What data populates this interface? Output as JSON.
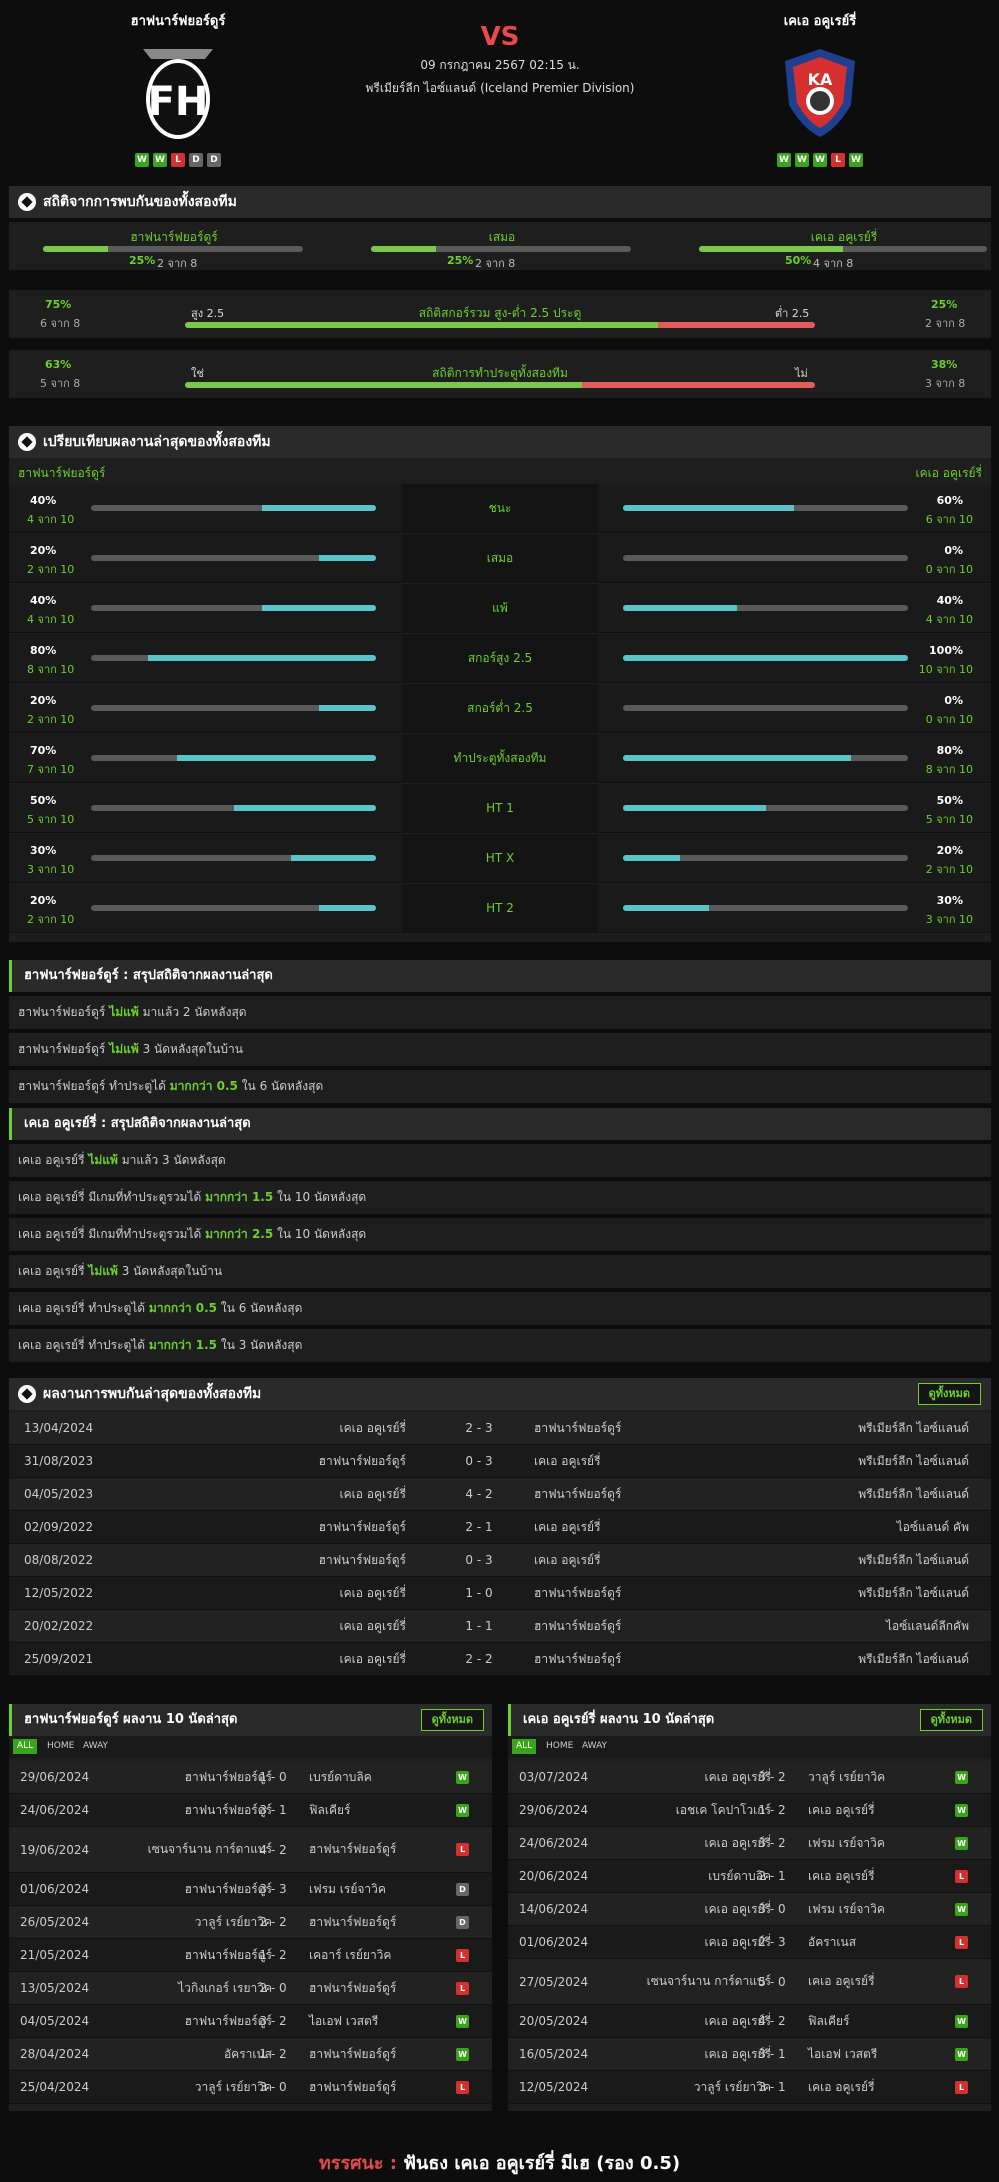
{
  "match": {
    "home": "ฮาฟนาร์ฟยอร์ดูร์",
    "away": "เคเอ อคูเรย์รี่",
    "vs": "VS",
    "date": "09 กรกฎาคม 2567 02:15 น.",
    "league": "พรีเมียร์ลีก ไอซ์แลนด์ (Iceland Premier Division)",
    "home_form": [
      "W",
      "W",
      "L",
      "D",
      "D"
    ],
    "away_form": [
      "W",
      "W",
      "W",
      "L",
      "W"
    ]
  },
  "h2h_stats": {
    "title": "สถิติจากการพบกันของทั้งสองทีม",
    "cols": [
      {
        "label": "ฮาฟนาร์ฟยอร์ดูร์",
        "pct": "25%",
        "sub": "2 จาก 8",
        "value": 25
      },
      {
        "label": "เสมอ",
        "pct": "25%",
        "sub": "2 จาก 8",
        "value": 25
      },
      {
        "label": "เคเอ อคูเรย์รี่",
        "pct": "50%",
        "sub": "4 จาก 8",
        "value": 50
      }
    ],
    "ou": {
      "left_pct": "75%",
      "left_sub": "6 จาก 8",
      "left_tag": "สูง 2.5",
      "label": "สถิติสกอร์รวม สูง-ต่ำ 2.5 ประตู",
      "right_tag": "ต่ำ 2.5",
      "right_pct": "25%",
      "right_sub": "2 จาก 8",
      "value": 75
    },
    "btts": {
      "left_pct": "63%",
      "left_sub": "5 จาก 8",
      "left_tag": "ใช่",
      "label": "สถิติการทำประตูทั้งสองทีม",
      "right_tag": "ไม่",
      "right_pct": "38%",
      "right_sub": "3 จาก 8",
      "value": 63
    }
  },
  "compare": {
    "title": "เปรียบเทียบผลงานล่าสุดของทั้งสองทีม",
    "home_label": "ฮาฟนาร์ฟยอร์ดูร์",
    "away_label": "เคเอ อคูเรย์รี่",
    "rows": [
      {
        "label": "ชนะ",
        "lp": "40%",
        "ls": "4 จาก 10",
        "lv": 40,
        "rp": "60%",
        "rs": "6 จาก 10",
        "rv": 60
      },
      {
        "label": "เสมอ",
        "lp": "20%",
        "ls": "2 จาก 10",
        "lv": 20,
        "rp": "0%",
        "rs": "0 จาก 10",
        "rv": 0
      },
      {
        "label": "แพ้",
        "lp": "40%",
        "ls": "4 จาก 10",
        "lv": 40,
        "rp": "40%",
        "rs": "4 จาก 10",
        "rv": 40
      },
      {
        "label": "สกอร์สูง 2.5",
        "lp": "80%",
        "ls": "8 จาก 10",
        "lv": 80,
        "rp": "100%",
        "rs": "10 จาก 10",
        "rv": 100
      },
      {
        "label": "สกอร์ต่ำ 2.5",
        "lp": "20%",
        "ls": "2 จาก 10",
        "lv": 20,
        "rp": "0%",
        "rs": "0 จาก 10",
        "rv": 0
      },
      {
        "label": "ทำประตูทั้งสองทีม",
        "lp": "70%",
        "ls": "7 จาก 10",
        "lv": 70,
        "rp": "80%",
        "rs": "8 จาก 10",
        "rv": 80
      },
      {
        "label": "HT 1",
        "lp": "50%",
        "ls": "5 จาก 10",
        "lv": 50,
        "rp": "50%",
        "rs": "5 จาก 10",
        "rv": 50
      },
      {
        "label": "HT X",
        "lp": "30%",
        "ls": "3 จาก 10",
        "lv": 30,
        "rp": "20%",
        "rs": "2 จาก 10",
        "rv": 20
      },
      {
        "label": "HT 2",
        "lp": "20%",
        "ls": "2 จาก 10",
        "lv": 20,
        "rp": "30%",
        "rs": "3 จาก 10",
        "rv": 30
      }
    ]
  },
  "home_summary": {
    "title": "ฮาฟนาร์ฟยอร์ดูร์ : สรุปสถิติจากผลงานล่าสุด",
    "rows": [
      {
        "pre": "ฮาฟนาร์ฟยอร์ดูร์",
        "hl": "ไม่แพ้",
        "post": "มาแล้ว 2 นัดหลังสุด"
      },
      {
        "pre": "ฮาฟนาร์ฟยอร์ดูร์",
        "hl": "ไม่แพ้",
        "post": "3 นัดหลังสุดในบ้าน"
      },
      {
        "pre": "ฮาฟนาร์ฟยอร์ดูร์ ทำประตูได้",
        "hl": "มากกว่า 0.5",
        "post": "ใน 6 นัดหลังสุด"
      }
    ]
  },
  "away_summary": {
    "title": "เคเอ อคูเรย์รี่ : สรุปสถิติจากผลงานล่าสุด",
    "rows": [
      {
        "pre": "เคเอ อคูเรย์รี่",
        "hl": "ไม่แพ้",
        "post": "มาแล้ว 3 นัดหลังสุด"
      },
      {
        "pre": "เคเอ อคูเรย์รี่ มีเกมที่ทำประตูรวมได้",
        "hl": "มากกว่า 1.5",
        "post": "ใน 10 นัดหลังสุด"
      },
      {
        "pre": "เคเอ อคูเรย์รี่ มีเกมที่ทำประตูรวมได้",
        "hl": "มากกว่า 2.5",
        "post": "ใน 10 นัดหลังสุด"
      },
      {
        "pre": "เคเอ อคูเรย์รี่",
        "hl": "ไม่แพ้",
        "post": "3 นัดหลังสุดในบ้าน"
      },
      {
        "pre": "เคเอ อคูเรย์รี่ ทำประตูได้",
        "hl": "มากกว่า 0.5",
        "post": "ใน 6 นัดหลังสุด"
      },
      {
        "pre": "เคเอ อคูเรย์รี่ ทำประตูได้",
        "hl": "มากกว่า 1.5",
        "post": "ใน 3 นัดหลังสุด"
      }
    ]
  },
  "h2h": {
    "title": "ผลงานการพบกันล่าสุดของทั้งสองทีม",
    "all_label": "ดูทั้งหมด",
    "rows": [
      {
        "date": "13/04/2024",
        "home": "เคเอ อคูเรย์รี่",
        "score": "2 - 3",
        "away": "ฮาฟนาร์ฟยอร์ดูร์",
        "comp": "พรีเมียร์ลีก ไอซ์แลนด์"
      },
      {
        "date": "31/08/2023",
        "home": "ฮาฟนาร์ฟยอร์ดูร์",
        "score": "0 - 3",
        "away": "เคเอ อคูเรย์รี่",
        "comp": "พรีเมียร์ลีก ไอซ์แลนด์"
      },
      {
        "date": "04/05/2023",
        "home": "เคเอ อคูเรย์รี่",
        "score": "4 - 2",
        "away": "ฮาฟนาร์ฟยอร์ดูร์",
        "comp": "พรีเมียร์ลีก ไอซ์แลนด์"
      },
      {
        "date": "02/09/2022",
        "home": "ฮาฟนาร์ฟยอร์ดูร์",
        "score": "2 - 1",
        "away": "เคเอ อคูเรย์รี่",
        "comp": "ไอซ์แลนด์ คัพ"
      },
      {
        "date": "08/08/2022",
        "home": "ฮาฟนาร์ฟยอร์ดูร์",
        "score": "0 - 3",
        "away": "เคเอ อคูเรย์รี่",
        "comp": "พรีเมียร์ลีก ไอซ์แลนด์"
      },
      {
        "date": "12/05/2022",
        "home": "เคเอ อคูเรย์รี่",
        "score": "1 - 0",
        "away": "ฮาฟนาร์ฟยอร์ดูร์",
        "comp": "พรีเมียร์ลีก ไอซ์แลนด์"
      },
      {
        "date": "20/02/2022",
        "home": "เคเอ อคูเรย์รี่",
        "score": "1 - 1",
        "away": "ฮาฟนาร์ฟยอร์ดูร์",
        "comp": "ไอซ์แลนด์ลีกคัพ"
      },
      {
        "date": "25/09/2021",
        "home": "เคเอ อคูเรย์รี่",
        "score": "2 - 2",
        "away": "ฮาฟนาร์ฟยอร์ดูร์",
        "comp": "พรีเมียร์ลีก ไอซ์แลนด์"
      }
    ]
  },
  "home_last10": {
    "title": "ฮาฟนาร์ฟยอร์ดูร์ ผลงาน 10 นัดล่าสุด",
    "all_label": "ดูทั้งหมด",
    "tabs": [
      "ALL",
      "HOME",
      "AWAY"
    ],
    "rows": [
      {
        "date": "29/06/2024",
        "home": "ฮาฟนาร์ฟยอร์ดูร์",
        "score": "1 - 0",
        "away": "เบรย์ดาบลิค",
        "res": "W"
      },
      {
        "date": "24/06/2024",
        "home": "ฮาฟนาร์ฟยอร์ดูร์",
        "score": "3 - 1",
        "away": "ฟิลเคียร์",
        "res": "W"
      },
      {
        "date": "19/06/2024",
        "home": "เซนจาร์นาน การ์ดาแบร์",
        "score": "4 - 2",
        "away": "ฮาฟนาร์ฟยอร์ดูร์",
        "res": "L"
      },
      {
        "date": "01/06/2024",
        "home": "ฮาฟนาร์ฟยอร์ดูร์",
        "score": "3 - 3",
        "away": "เฟรม เรย์จาวิค",
        "res": "D"
      },
      {
        "date": "26/05/2024",
        "home": "วาลูร์ เรย์ยาวิค",
        "score": "2 - 2",
        "away": "ฮาฟนาร์ฟยอร์ดูร์",
        "res": "D"
      },
      {
        "date": "21/05/2024",
        "home": "ฮาฟนาร์ฟยอร์ดูร์",
        "score": "1 - 2",
        "away": "เคอาร์ เรย์ยาวิค",
        "res": "L"
      },
      {
        "date": "13/05/2024",
        "home": "ไวกิงเกอร์ เรยาวิค",
        "score": "2 - 0",
        "away": "ฮาฟนาร์ฟยอร์ดูร์",
        "res": "L"
      },
      {
        "date": "04/05/2024",
        "home": "ฮาฟนาร์ฟยอร์ดูร์",
        "score": "3 - 2",
        "away": "ไอเอฟ เวสตรี",
        "res": "W"
      },
      {
        "date": "28/04/2024",
        "home": "อัคราเนส",
        "score": "1 - 2",
        "away": "ฮาฟนาร์ฟยอร์ดูร์",
        "res": "W"
      },
      {
        "date": "25/04/2024",
        "home": "วาลูร์ เรย์ยาวิค",
        "score": "3 - 0",
        "away": "ฮาฟนาร์ฟยอร์ดูร์",
        "res": "L"
      }
    ]
  },
  "away_last10": {
    "title": "เคเอ อคูเรย์รี่ ผลงาน 10 นัดล่าสุด",
    "all_label": "ดูทั้งหมด",
    "tabs": [
      "ALL",
      "HOME",
      "AWAY"
    ],
    "rows": [
      {
        "date": "03/07/2024",
        "home": "เคเอ อคูเรย์รี่",
        "score": "3 - 2",
        "away": "วาลูร์ เรย์ยาวิค",
        "res": "W"
      },
      {
        "date": "29/06/2024",
        "home": "เอชเค โคปาโวเกร์",
        "score": "1 - 2",
        "away": "เคเอ อคูเรย์รี่",
        "res": "W"
      },
      {
        "date": "24/06/2024",
        "home": "เคเอ อคูเรย์รี่",
        "score": "3 - 2",
        "away": "เฟรม เรย์จาวิค",
        "res": "W"
      },
      {
        "date": "20/06/2024",
        "home": "เบรย์ดาบลิค",
        "score": "2 - 1",
        "away": "เคเอ อคูเรย์รี่",
        "res": "L"
      },
      {
        "date": "14/06/2024",
        "home": "เคเอ อคูเรย์รี่",
        "score": "3 - 0",
        "away": "เฟรม เรย์จาวิค",
        "res": "W"
      },
      {
        "date": "01/06/2024",
        "home": "เคเอ อคูเรย์รี่",
        "score": "2 - 3",
        "away": "อัคราเนส",
        "res": "L"
      },
      {
        "date": "27/05/2024",
        "home": "เซนจาร์นาน การ์ดาแบร์",
        "score": "5 - 0",
        "away": "เคเอ อคูเรย์รี่",
        "res": "L"
      },
      {
        "date": "20/05/2024",
        "home": "เคเอ อคูเรย์รี่",
        "score": "4 - 2",
        "away": "ฟิลเคียร์",
        "res": "W"
      },
      {
        "date": "16/05/2024",
        "home": "เคเอ อคูเรย์รี่",
        "score": "3 - 1",
        "away": "ไอเอฟ เวสตรี",
        "res": "W"
      },
      {
        "date": "12/05/2024",
        "home": "วาลูร์ เรย์ยาวิค",
        "score": "3 - 1",
        "away": "เคเอ อคูเรย์รี่",
        "res": "L"
      }
    ]
  },
  "tip": {
    "label": "ทรรศนะ :",
    "text": "ฟันธง เคเอ อคูเรย์รี่ มีเฮ (รอง 0.5)"
  },
  "colors": {
    "accent": "#6ccf2c",
    "cyan": "#5bc4c8",
    "red": "#e25c5c"
  }
}
